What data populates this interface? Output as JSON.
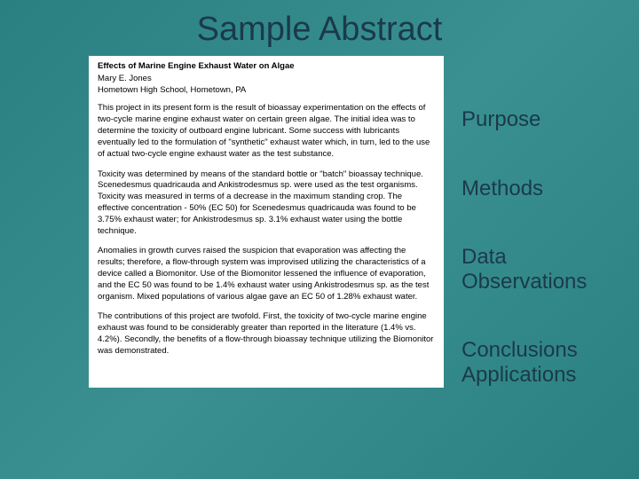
{
  "slide": {
    "title": "Sample Abstract",
    "background_colors": [
      "#2a8080",
      "#3a9090"
    ],
    "title_color": "#1a3a4a",
    "title_fontsize": 38
  },
  "abstract": {
    "title": "Effects of Marine Engine Exhaust Water on Algae",
    "author_line1": "Mary E. Jones",
    "author_line2": "Hometown High School, Hometown, PA",
    "para1": "This project in its present form is the result of bioassay experimentation on the effects of two-cycle marine engine exhaust water on certain green algae. The initial idea was to determine the toxicity of outboard engine lubricant. Some success with lubricants eventually led to the formulation of \"synthetic\" exhaust water which, in turn, led to the use of actual two-cycle engine exhaust water as the test substance.",
    "para2": "Toxicity was determined by means of the standard bottle or \"batch\" bioassay technique. Scenedesmus quadricauda and Ankistrodesmus sp. were used as the test organisms. Toxicity was measured in terms of a decrease in the maximum standing crop. The effective concentration - 50% (EC 50) for Scenedesmus quadricauda was found to be 3.75% exhaust water; for Ankistrodesmus sp. 3.1% exhaust water using the bottle technique.",
    "para3": "Anomalies in growth curves raised the suspicion that evaporation was affecting the results; therefore, a flow-through system was improvised utilizing the characteristics of a device called a Biomonitor. Use of the Biomonitor lessened the influence of evaporation, and the EC 50 was found to be 1.4% exhaust water using Ankistrodesmus sp. as the test organism. Mixed populations of various algae gave an EC 50 of 1.28% exhaust water.",
    "para4": "The contributions of this project are twofold. First, the toxicity of two-cycle marine engine exhaust was found to be considerably greater than reported in the literature (1.4% vs. 4.2%). Secondly, the benefits of a flow-through bioassay technique utilizing the Biomonitor was demonstrated.",
    "box_bg": "#ffffff",
    "text_color": "#000000",
    "body_fontsize": 9.5
  },
  "labels": {
    "purpose": "Purpose",
    "methods": "Methods",
    "data": "Data",
    "observations": "Observations",
    "conclusions": "Conclusions",
    "applications": "Applications",
    "color": "#1a3a4a",
    "fontsize": 24
  }
}
